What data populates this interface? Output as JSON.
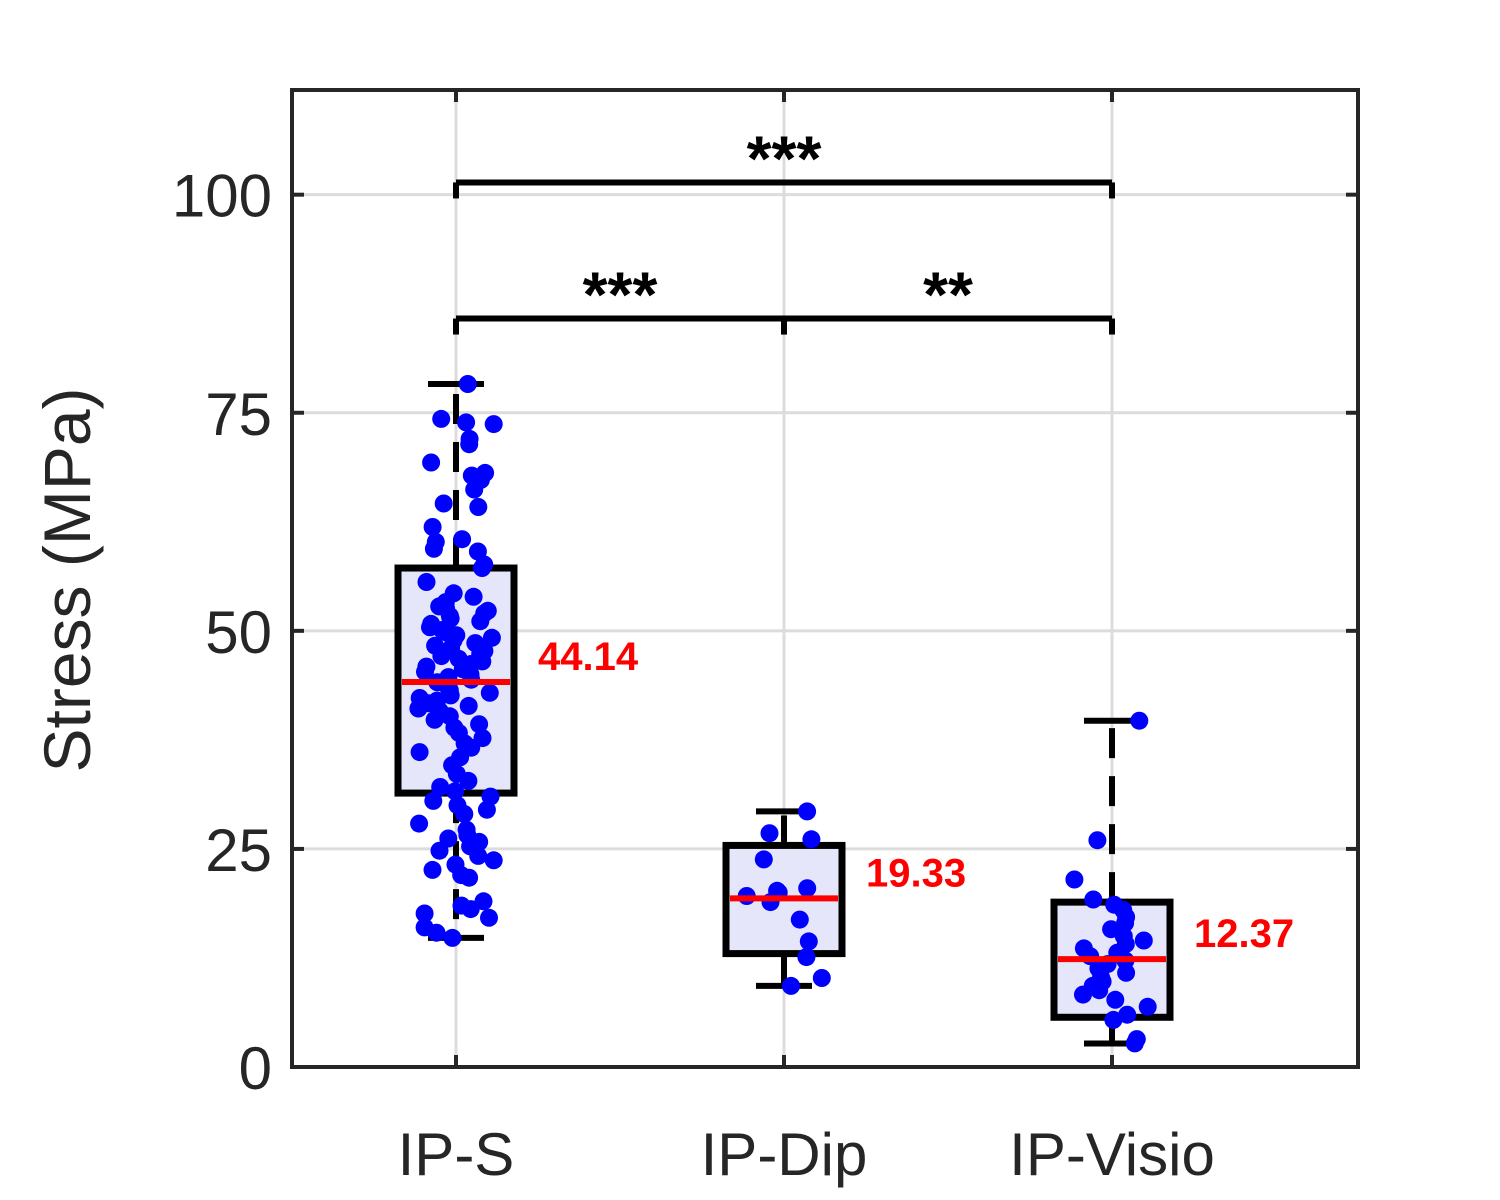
{
  "chart_data": {
    "type": "box",
    "ylabel": "Stress (MPa)",
    "xlabel": "",
    "ylim": [
      0,
      112
    ],
    "yticks": [
      "0",
      "25",
      "50",
      "75",
      "100"
    ],
    "grid": true,
    "colors": {
      "box_fill": "#e6e6fa",
      "median": "#ff0000",
      "points": "#0000ff",
      "median_label": "#ff0000"
    },
    "categories": [
      "IP-S",
      "IP-Dip",
      "IP-Visio"
    ],
    "boxes": [
      {
        "name": "IP-S",
        "min": 14.8,
        "q1": 31.4,
        "median": 44.14,
        "q3": 57.2,
        "max": 78.3,
        "median_label": "44.14",
        "points": [
          78.3,
          74.3,
          73.9,
          73.7,
          72.0,
          71.4,
          69.3,
          68.1,
          67.8,
          67.3,
          66.2,
          64.6,
          64.2,
          61.9,
          60.5,
          60.2,
          59.4,
          59.1,
          57.6,
          57.2,
          55.6,
          54.3,
          53.9,
          53.3,
          52.8,
          52.6,
          52.3,
          52.0,
          51.7,
          51.4,
          51.1,
          50.8,
          50.4,
          50.1,
          49.8,
          49.5,
          49.2,
          48.9,
          48.6,
          48.3,
          48.0,
          47.7,
          47.4,
          47.1,
          46.8,
          46.5,
          46.2,
          45.9,
          45.6,
          45.3,
          45.0,
          44.7,
          44.4,
          44.1,
          43.8,
          43.5,
          43.2,
          42.9,
          42.6,
          42.3,
          42.0,
          41.7,
          41.4,
          41.1,
          40.8,
          40.5,
          40.2,
          39.8,
          39.3,
          38.9,
          38.3,
          37.7,
          37.1,
          36.6,
          36.1,
          35.5,
          34.6,
          33.6,
          32.8,
          32.1,
          31.6,
          31.0,
          30.5,
          30.0,
          29.5,
          29.0,
          27.9,
          27.2,
          26.6,
          26.2,
          25.8,
          25.3,
          24.8,
          24.2,
          23.7,
          23.2,
          22.6,
          22.0,
          21.7,
          19.0,
          18.5,
          18.1,
          17.6,
          17.1,
          16.0,
          15.4,
          14.8
        ]
      },
      {
        "name": "IP-Dip",
        "min": 9.3,
        "q1": 13.0,
        "median": 19.33,
        "q3": 25.4,
        "max": 29.3,
        "median_label": "19.33",
        "points": [
          29.3,
          26.8,
          26.1,
          23.8,
          20.5,
          20.2,
          20.0,
          19.6,
          18.9,
          16.9,
          14.4,
          12.6,
          10.2,
          9.3
        ]
      },
      {
        "name": "IP-Visio",
        "min": 2.7,
        "q1": 5.7,
        "median": 12.37,
        "q3": 18.9,
        "max": 39.7,
        "median_label": "12.37",
        "points": [
          39.7,
          26.0,
          21.5,
          19.2,
          18.6,
          18.0,
          17.2,
          16.5,
          15.8,
          15.0,
          14.5,
          14.1,
          13.6,
          13.1,
          12.7,
          12.2,
          11.8,
          11.3,
          10.8,
          10.3,
          9.8,
          9.3,
          8.8,
          8.3,
          7.7,
          6.9,
          6.0,
          5.4,
          3.2,
          2.7
        ]
      }
    ],
    "significance": [
      {
        "from": "IP-S",
        "to": "IP-Visio",
        "label": "***",
        "y": 101.4
      },
      {
        "from": "IP-S",
        "to": "IP-Dip",
        "label": "***",
        "y": 85.8
      },
      {
        "from": "IP-Dip",
        "to": "IP-Visio",
        "label": "**",
        "y": 85.8
      }
    ]
  }
}
